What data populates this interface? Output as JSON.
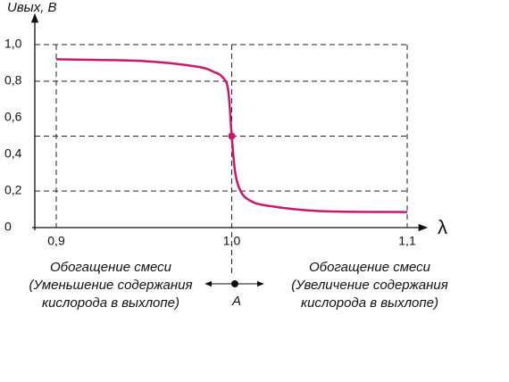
{
  "chart_data": {
    "type": "line",
    "y_label": "Uвых, В",
    "x_label": "λ",
    "x": [
      0.9,
      0.95,
      0.98,
      0.99,
      0.995,
      0.998,
      1.0,
      1.002,
      1.005,
      1.01,
      1.02,
      1.05,
      1.1
    ],
    "series": [
      {
        "name": "Uвых",
        "color": "#c8186e",
        "values": [
          0.92,
          0.91,
          0.88,
          0.85,
          0.82,
          0.75,
          0.5,
          0.3,
          0.2,
          0.15,
          0.12,
          0.09,
          0.085
        ]
      }
    ],
    "xlim": [
      0.9,
      1.1
    ],
    "xticks": [
      {
        "value": 0.9,
        "label": "0,9"
      },
      {
        "value": 1.0,
        "label": "1,0"
      },
      {
        "value": 1.1,
        "label": "1,1"
      }
    ],
    "ylim": [
      0,
      1
    ],
    "yticks": [
      0,
      {
        "value": 0.2,
        "label": "0,2"
      },
      {
        "value": 0.4,
        "label": "0,4"
      },
      {
        "value": 0.6,
        "label": "0,6"
      },
      {
        "value": 0.8,
        "label": "0,8"
      },
      {
        "value": 1.0,
        "label": "1,0"
      }
    ],
    "reference_lines_y": [
      0.2,
      0.5,
      0.8,
      1.0
    ],
    "grid_x": true,
    "point": {
      "label": "A",
      "x": 1.0,
      "y": 0.5
    },
    "left_note": [
      "Обогащение смеси",
      "(Уменьшение содержания",
      "кислорода в выхлопе)"
    ],
    "right_note": [
      "Обогащение смеси",
      "(Увеличение содержания",
      "кислорода в выхлопе)"
    ]
  }
}
